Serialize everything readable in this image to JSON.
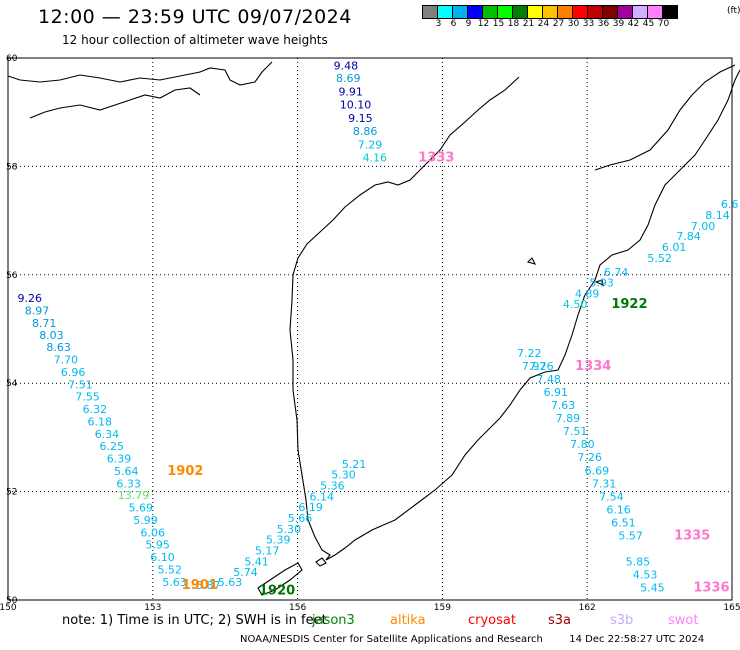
{
  "title": "12:00 — 23:59 UTC 09/07/2024",
  "subtitle": "12 hour collection of altimeter wave heights",
  "legend": {
    "colors": [
      "#808080",
      "#00ffff",
      "#00b0f0",
      "#0000ff",
      "#00c000",
      "#00ff00",
      "#008000",
      "#ffff00",
      "#ffc000",
      "#ff8000",
      "#ff0000",
      "#c00000",
      "#800000",
      "#a000a0",
      "#d0b0ff",
      "#ff80ff",
      "#000000"
    ],
    "ticks": [
      "3",
      "6",
      "9",
      "12",
      "15",
      "18",
      "21",
      "24",
      "27",
      "30",
      "33",
      "36",
      "39",
      "42",
      "45",
      "70"
    ],
    "unit": "(ft)"
  },
  "axes": {
    "x_ticks": [
      "150",
      "153",
      "156",
      "159",
      "162",
      "165"
    ],
    "y_ticks": [
      "60",
      "58",
      "56",
      "54",
      "52",
      "50"
    ],
    "xlim": [
      150,
      165
    ],
    "ylim": [
      50,
      60
    ]
  },
  "tracks": [
    {
      "points": [
        {
          "text": "9.48",
          "color": "#0000aa",
          "lon": 157.0,
          "lat": 59.79
        },
        {
          "text": "8.69",
          "color": "#0099dd",
          "lon": 157.05,
          "lat": 59.56
        },
        {
          "text": "9.91",
          "color": "#0000aa",
          "lon": 157.1,
          "lat": 59.31
        },
        {
          "text": "10.10",
          "color": "#0000aa",
          "lon": 157.2,
          "lat": 59.07
        },
        {
          "text": "9.15",
          "color": "#0000aa",
          "lon": 157.3,
          "lat": 58.82
        },
        {
          "text": "8.86",
          "color": "#0099dd",
          "lon": 157.4,
          "lat": 58.58
        },
        {
          "text": "7.29",
          "color": "#00bbee",
          "lon": 157.5,
          "lat": 58.33
        },
        {
          "text": "4.16",
          "color": "#00cccc",
          "lon": 157.6,
          "lat": 58.09
        }
      ],
      "id": "1333",
      "id_color": "#ff77cc",
      "id_lon": 158.5,
      "id_lat": 58.09
    },
    {
      "points": [
        {
          "text": "6.6",
          "color": "#00bbee",
          "lon": 164.95,
          "lat": 57.23
        },
        {
          "text": "8.14",
          "color": "#00bbee",
          "lon": 164.7,
          "lat": 57.03
        },
        {
          "text": "7.00",
          "color": "#00bbee",
          "lon": 164.4,
          "lat": 56.83
        },
        {
          "text": "7.84",
          "color": "#00bbee",
          "lon": 164.1,
          "lat": 56.64
        },
        {
          "text": "6.01",
          "color": "#00bbee",
          "lon": 163.8,
          "lat": 56.44
        },
        {
          "text": "5.52",
          "color": "#00bbee",
          "lon": 163.5,
          "lat": 56.24
        },
        {
          "text": "6.74",
          "color": "#00bbee",
          "lon": 162.6,
          "lat": 55.98
        },
        {
          "text": "5.93",
          "color": "#00bbee",
          "lon": 162.3,
          "lat": 55.78
        },
        {
          "text": "4.89",
          "color": "#00bbee",
          "lon": 162.0,
          "lat": 55.58
        },
        {
          "text": "4.50",
          "color": "#00cccc",
          "lon": 161.75,
          "lat": 55.39
        }
      ],
      "id": "1922",
      "id_color": "#007700",
      "id_lon": 162.5,
      "id_lat": 55.39
    },
    {
      "points": [
        {
          "text": "9.26",
          "color": "#0000aa",
          "lon": 150.45,
          "lat": 55.5
        },
        {
          "text": "8.97",
          "color": "#0099dd",
          "lon": 150.6,
          "lat": 55.27
        },
        {
          "text": "8.71",
          "color": "#0099dd",
          "lon": 150.75,
          "lat": 55.04
        },
        {
          "text": "8.03",
          "color": "#0099dd",
          "lon": 150.9,
          "lat": 54.82
        },
        {
          "text": "8.63",
          "color": "#0099dd",
          "lon": 151.05,
          "lat": 54.59
        },
        {
          "text": "7.70",
          "color": "#00bbee",
          "lon": 151.2,
          "lat": 54.36
        },
        {
          "text": "6.96",
          "color": "#00bbee",
          "lon": 151.35,
          "lat": 54.13
        },
        {
          "text": "7.51",
          "color": "#00bbee",
          "lon": 151.5,
          "lat": 53.9
        },
        {
          "text": "7.55",
          "color": "#00bbee",
          "lon": 151.65,
          "lat": 53.68
        },
        {
          "text": "6.32",
          "color": "#00bbee",
          "lon": 151.8,
          "lat": 53.45
        },
        {
          "text": "6.18",
          "color": "#00bbee",
          "lon": 151.9,
          "lat": 53.22
        },
        {
          "text": "6.34",
          "color": "#00bbee",
          "lon": 152.05,
          "lat": 52.99
        },
        {
          "text": "6.25",
          "color": "#00bbee",
          "lon": 152.15,
          "lat": 52.77
        },
        {
          "text": "6.39",
          "color": "#00bbee",
          "lon": 152.3,
          "lat": 52.54
        },
        {
          "text": "5.64",
          "color": "#00bbee",
          "lon": 152.45,
          "lat": 52.31
        },
        {
          "text": "6.33",
          "color": "#00bbee",
          "lon": 152.5,
          "lat": 52.08
        },
        {
          "text": "13.79",
          "color": "#66dd66",
          "lon": 152.6,
          "lat": 51.86
        },
        {
          "text": "5.69",
          "color": "#00bbee",
          "lon": 152.75,
          "lat": 51.63
        },
        {
          "text": "5.99",
          "color": "#00bbee",
          "lon": 152.85,
          "lat": 51.4
        },
        {
          "text": "6.06",
          "color": "#00bbee",
          "lon": 153.0,
          "lat": 51.17
        },
        {
          "text": "5.95",
          "color": "#00bbee",
          "lon": 153.1,
          "lat": 50.95
        },
        {
          "text": "6.10",
          "color": "#00bbee",
          "lon": 153.2,
          "lat": 50.72
        },
        {
          "text": "5.52",
          "color": "#00bbee",
          "lon": 153.35,
          "lat": 50.49
        },
        {
          "text": "5.63",
          "color": "#00bbee",
          "lon": 153.45,
          "lat": 50.26
        }
      ],
      "id": "1902",
      "id_color": "#ff8800",
      "id_lon": 153.3,
      "id_lat": 52.31
    },
    {
      "points": [
        {
          "text": "5.63",
          "color": "#00bbee",
          "lon": 154.6,
          "lat": 50.26
        },
        {
          "text": "5.74",
          "color": "#00bbee",
          "lon": 154.92,
          "lat": 50.44
        },
        {
          "text": "5.41",
          "color": "#00bbee",
          "lon": 155.15,
          "lat": 50.64
        },
        {
          "text": "5.17",
          "color": "#00bbee",
          "lon": 155.37,
          "lat": 50.84
        },
        {
          "text": "5.39",
          "color": "#00bbee",
          "lon": 155.6,
          "lat": 51.04
        },
        {
          "text": "5.30",
          "color": "#00bbee",
          "lon": 155.82,
          "lat": 51.24
        },
        {
          "text": "5.66",
          "color": "#00bbee",
          "lon": 156.05,
          "lat": 51.44
        },
        {
          "text": "6.19",
          "color": "#00bbee",
          "lon": 156.27,
          "lat": 51.64
        },
        {
          "text": "6.14",
          "color": "#00bbee",
          "lon": 156.5,
          "lat": 51.84
        },
        {
          "text": "5.36",
          "color": "#00bbee",
          "lon": 156.72,
          "lat": 52.04
        },
        {
          "text": "5.30",
          "color": "#00bbee",
          "lon": 156.95,
          "lat": 52.24
        },
        {
          "text": "5.21",
          "color": "#00bbee",
          "lon": 157.17,
          "lat": 52.44
        }
      ],
      "id": "1920",
      "id_color": "#007700",
      "id_lon": 155.2,
      "id_lat": 50.1
    },
    {
      "points": [
        {
          "text": "5.87",
          "color": "#00bbee",
          "lon": 154.15,
          "lat": 50.2
        }
      ],
      "id": "1901",
      "id_color": "#ff8800",
      "id_lon": 153.6,
      "id_lat": 50.2
    },
    {
      "points": [
        {
          "text": "7.22",
          "color": "#00bbee",
          "lon": 160.8,
          "lat": 54.48
        },
        {
          "text": "7.97",
          "color": "#00bbee",
          "lon": 160.9,
          "lat": 54.24
        },
        {
          "text": "7.26",
          "color": "#00bbee",
          "lon": 161.05,
          "lat": 54.24
        },
        {
          "text": "7.48",
          "color": "#00bbee",
          "lon": 161.2,
          "lat": 54.0
        },
        {
          "text": "6.91",
          "color": "#00bbee",
          "lon": 161.35,
          "lat": 53.76
        },
        {
          "text": "7.63",
          "color": "#00bbee",
          "lon": 161.5,
          "lat": 53.52
        },
        {
          "text": "7.89",
          "color": "#00bbee",
          "lon": 161.6,
          "lat": 53.28
        },
        {
          "text": "7.51",
          "color": "#00bbee",
          "lon": 161.75,
          "lat": 53.04
        },
        {
          "text": "7.80",
          "color": "#00bbee",
          "lon": 161.9,
          "lat": 52.8
        },
        {
          "text": "7.26",
          "color": "#00bbee",
          "lon": 162.05,
          "lat": 52.56
        },
        {
          "text": "6.69",
          "color": "#00bbee",
          "lon": 162.2,
          "lat": 52.32
        },
        {
          "text": "7.31",
          "color": "#00bbee",
          "lon": 162.35,
          "lat": 52.08
        },
        {
          "text": "7.54",
          "color": "#00bbee",
          "lon": 162.5,
          "lat": 51.84
        },
        {
          "text": "6.16",
          "color": "#00bbee",
          "lon": 162.65,
          "lat": 51.6
        },
        {
          "text": "6.51",
          "color": "#00bbee",
          "lon": 162.75,
          "lat": 51.36
        },
        {
          "text": "5.57",
          "color": "#00bbee",
          "lon": 162.9,
          "lat": 51.12
        },
        {
          "text": "5.85",
          "color": "#00bbee",
          "lon": 163.05,
          "lat": 50.64
        },
        {
          "text": "4.53",
          "color": "#00bbee",
          "lon": 163.2,
          "lat": 50.4
        },
        {
          "text": "5.45",
          "color": "#00bbee",
          "lon": 163.35,
          "lat": 50.16
        }
      ],
      "id": "1334",
      "id_color": "#ff77cc",
      "id_lon": 161.75,
      "id_lat": 54.24
    },
    {
      "points": [],
      "id": "1335",
      "id_color": "#ff77cc",
      "id_lon": 163.8,
      "id_lat": 51.12
    },
    {
      "points": [],
      "id": "1336",
      "id_color": "#ff77cc",
      "id_lon": 164.2,
      "id_lat": 50.16
    }
  ],
  "note": "note: 1) Time is in UTC; 2) SWH is in feet",
  "satellites": [
    {
      "name": "jason3",
      "color": "#008800"
    },
    {
      "name": "altika",
      "color": "#ff8800"
    },
    {
      "name": "cryosat",
      "color": "#ff0000"
    },
    {
      "name": "s3a",
      "color": "#990000"
    },
    {
      "name": "s3b",
      "color": "#c8a8ff"
    },
    {
      "name": "swot",
      "color": "#ff80ff"
    }
  ],
  "credit": "NOAA/NESDIS Center for Satellite Applications and Research",
  "timestamp": "14 Dec 22:58:27 UTC 2024"
}
